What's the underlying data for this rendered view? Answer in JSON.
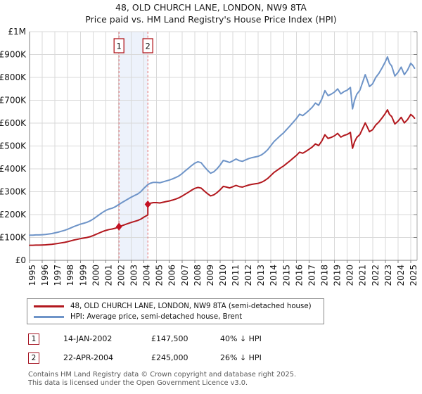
{
  "title": "48, OLD CHURCH LANE, LONDON, NW9 8TA",
  "subtitle": "Price paid vs. HM Land Registry's House Price Index (HPI)",
  "legend": [
    {
      "label": "48, OLD CHURCH LANE, LONDON, NW9 8TA (semi-detached house)",
      "color": "#b2181e"
    },
    {
      "label": "HPI: Average price, semi-detached house, Brent",
      "color": "#6e94c8"
    }
  ],
  "transactions": [
    {
      "num": "1",
      "date": "14-JAN-2002",
      "price": "£147,500",
      "vs_hpi": "40% ↓ HPI",
      "year": 2002.04,
      "value_k": 147.5
    },
    {
      "num": "2",
      "date": "22-APR-2004",
      "price": "£245,000",
      "vs_hpi": "26% ↓ HPI",
      "year": 2004.31,
      "value_k": 245
    }
  ],
  "footer": {
    "line1": "Contains HM Land Registry data © Crown copyright and database right 2025.",
    "line2": "This data is licensed under the Open Government Licence v3.0."
  },
  "chart_data": {
    "type": "line",
    "title": "48, OLD CHURCH LANE, LONDON, NW9 8TA",
    "subtitle": "Price paid vs. HM Land Registry's House Price Index (HPI)",
    "unit": "GBP thousands",
    "grid": true,
    "legend_position": "bottom",
    "x_domain": [
      1995,
      2025.5
    ],
    "y_domain_k": [
      0,
      1000
    ],
    "x_ticks": [
      1995,
      1996,
      1997,
      1998,
      1999,
      2000,
      2001,
      2002,
      2003,
      2004,
      2005,
      2006,
      2007,
      2008,
      2009,
      2010,
      2011,
      2012,
      2013,
      2014,
      2015,
      2016,
      2017,
      2018,
      2019,
      2020,
      2021,
      2022,
      2023,
      2024,
      2025
    ],
    "y_ticks": [
      {
        "v": 1000,
        "label": "£1M"
      },
      {
        "v": 900,
        "label": "£900K"
      },
      {
        "v": 800,
        "label": "£800K"
      },
      {
        "v": 700,
        "label": "£700K"
      },
      {
        "v": 600,
        "label": "£600K"
      },
      {
        "v": 500,
        "label": "£500K"
      },
      {
        "v": 400,
        "label": "£400K"
      },
      {
        "v": 300,
        "label": "£300K"
      },
      {
        "v": 200,
        "label": "£200K"
      },
      {
        "v": 100,
        "label": "£100K"
      },
      {
        "v": 0,
        "label": "£0"
      }
    ],
    "highlight_band": {
      "from_year": 2002.04,
      "to_year": 2004.31,
      "color": "#edf2fb"
    },
    "sale_line_color": "#e56a6a",
    "series": [
      {
        "name": "48, OLD CHURCH LANE, LONDON, NW9 8TA (semi-detached house)",
        "color": "#b2181e",
        "points": [
          [
            1995,
            66
          ],
          [
            1995.25,
            66
          ],
          [
            1995.5,
            66.6
          ],
          [
            1995.75,
            66.6
          ],
          [
            1996,
            67.2
          ],
          [
            1996.25,
            67.8
          ],
          [
            1996.5,
            69
          ],
          [
            1996.75,
            70.2
          ],
          [
            1997,
            72
          ],
          [
            1997.25,
            73.8
          ],
          [
            1997.5,
            76.2
          ],
          [
            1997.75,
            78.6
          ],
          [
            1998,
            81.6
          ],
          [
            1998.25,
            85.2
          ],
          [
            1998.5,
            88.8
          ],
          [
            1998.75,
            91.8
          ],
          [
            1999,
            94.8
          ],
          [
            1999.25,
            97.2
          ],
          [
            1999.5,
            99.6
          ],
          [
            1999.75,
            103.2
          ],
          [
            2000,
            108
          ],
          [
            2000.25,
            114
          ],
          [
            2000.5,
            120
          ],
          [
            2000.75,
            126
          ],
          [
            2001,
            130.8
          ],
          [
            2001.25,
            134.4
          ],
          [
            2001.5,
            136.8
          ],
          [
            2001.75,
            140.4
          ],
          [
            2002,
            145.8
          ],
          [
            2002.08,
            147.6
          ],
          [
            2002.25,
            151.2
          ],
          [
            2002.5,
            156
          ],
          [
            2002.75,
            160.8
          ],
          [
            2003,
            165.6
          ],
          [
            2003.25,
            169.8
          ],
          [
            2003.5,
            174
          ],
          [
            2003.75,
            180
          ],
          [
            2004,
            189
          ],
          [
            2004.31,
            198.6
          ],
          [
            2004.31,
            244.9
          ],
          [
            2004.5,
            249.4
          ],
          [
            2004.75,
            252.3
          ],
          [
            2005,
            252.3
          ],
          [
            2005.25,
            250.9
          ],
          [
            2005.5,
            253.8
          ],
          [
            2005.75,
            256.8
          ],
          [
            2006,
            259.7
          ],
          [
            2006.25,
            263.4
          ],
          [
            2006.5,
            267.9
          ],
          [
            2006.75,
            273.1
          ],
          [
            2007,
            280.5
          ],
          [
            2007.25,
            289.3
          ],
          [
            2007.5,
            297.5
          ],
          [
            2007.75,
            306.4
          ],
          [
            2008,
            314.5
          ],
          [
            2008.25,
            318.9
          ],
          [
            2008.5,
            316
          ],
          [
            2008.75,
            303.4
          ],
          [
            2009,
            291.6
          ],
          [
            2009.25,
            281.9
          ],
          [
            2009.5,
            286.4
          ],
          [
            2009.75,
            296
          ],
          [
            2010,
            308.6
          ],
          [
            2010.25,
            323.4
          ],
          [
            2010.5,
            320.4
          ],
          [
            2010.75,
            316.7
          ],
          [
            2011,
            321.9
          ],
          [
            2011.25,
            327.8
          ],
          [
            2011.5,
            322.6
          ],
          [
            2011.75,
            320.4
          ],
          [
            2012,
            324.9
          ],
          [
            2012.25,
            329.3
          ],
          [
            2012.5,
            332.3
          ],
          [
            2012.75,
            334.5
          ],
          [
            2013,
            336.7
          ],
          [
            2013.25,
            341.1
          ],
          [
            2013.5,
            348.5
          ],
          [
            2013.75,
            358.2
          ],
          [
            2014,
            371.5
          ],
          [
            2014.25,
            384.8
          ],
          [
            2014.5,
            394.4
          ],
          [
            2014.75,
            404
          ],
          [
            2015,
            412.9
          ],
          [
            2015.25,
            424
          ],
          [
            2015.5,
            435.1
          ],
          [
            2015.75,
            447
          ],
          [
            2016,
            458.8
          ],
          [
            2016.25,
            472.9
          ],
          [
            2016.5,
            468.4
          ],
          [
            2016.75,
            476.6
          ],
          [
            2017,
            485.4
          ],
          [
            2017.25,
            495.8
          ],
          [
            2017.5,
            509.1
          ],
          [
            2017.75,
            501.7
          ],
          [
            2018,
            521.7
          ],
          [
            2018.25,
            549.1
          ],
          [
            2018.5,
            532.8
          ],
          [
            2018.75,
            538
          ],
          [
            2019,
            544.6
          ],
          [
            2019.25,
            555
          ],
          [
            2019.5,
            538.7
          ],
          [
            2019.75,
            546.1
          ],
          [
            2020,
            550.6
          ],
          [
            2020.25,
            559.4
          ],
          [
            2020.42,
            489.9
          ],
          [
            2020.58,
            518
          ],
          [
            2020.75,
            537.2
          ],
          [
            2021,
            550.6
          ],
          [
            2021.25,
            580.2
          ],
          [
            2021.42,
            600.9
          ],
          [
            2021.58,
            583.1
          ],
          [
            2021.75,
            562.4
          ],
          [
            2022,
            571.3
          ],
          [
            2022.25,
            592
          ],
          [
            2022.5,
            605.3
          ],
          [
            2022.75,
            623.1
          ],
          [
            2023,
            642.3
          ],
          [
            2023.17,
            658.6
          ],
          [
            2023.33,
            637.9
          ],
          [
            2023.5,
            629
          ],
          [
            2023.75,
            596.4
          ],
          [
            2024,
            608.3
          ],
          [
            2024.25,
            625.3
          ],
          [
            2024.5,
            600.9
          ],
          [
            2024.75,
            615.7
          ],
          [
            2025,
            637.9
          ],
          [
            2025.17,
            630.5
          ],
          [
            2025.3,
            621.6
          ]
        ]
      },
      {
        "name": "HPI: Average price, semi-detached house, Brent",
        "color": "#6e94c8",
        "points": [
          [
            1995,
            110
          ],
          [
            1995.25,
            110
          ],
          [
            1995.5,
            111
          ],
          [
            1995.75,
            111
          ],
          [
            1996,
            112
          ],
          [
            1996.25,
            113
          ],
          [
            1996.5,
            115
          ],
          [
            1996.75,
            117
          ],
          [
            1997,
            120
          ],
          [
            1997.25,
            123
          ],
          [
            1997.5,
            127
          ],
          [
            1997.75,
            131
          ],
          [
            1998,
            136
          ],
          [
            1998.25,
            142
          ],
          [
            1998.5,
            148
          ],
          [
            1998.75,
            153
          ],
          [
            1999,
            158
          ],
          [
            1999.25,
            162
          ],
          [
            1999.5,
            166
          ],
          [
            1999.75,
            172
          ],
          [
            2000,
            180
          ],
          [
            2000.25,
            190
          ],
          [
            2000.5,
            200
          ],
          [
            2000.75,
            210
          ],
          [
            2001,
            218
          ],
          [
            2001.25,
            224
          ],
          [
            2001.5,
            228
          ],
          [
            2001.75,
            234
          ],
          [
            2002,
            243
          ],
          [
            2002.08,
            246
          ],
          [
            2002.25,
            252
          ],
          [
            2002.5,
            260
          ],
          [
            2002.75,
            268
          ],
          [
            2003,
            276
          ],
          [
            2003.25,
            283
          ],
          [
            2003.5,
            290
          ],
          [
            2003.75,
            300
          ],
          [
            2004,
            315
          ],
          [
            2004.31,
            331
          ],
          [
            2004.5,
            337
          ],
          [
            2004.75,
            341
          ],
          [
            2005,
            341
          ],
          [
            2005.25,
            339
          ],
          [
            2005.5,
            343
          ],
          [
            2005.75,
            347
          ],
          [
            2006,
            351
          ],
          [
            2006.25,
            356
          ],
          [
            2006.5,
            362
          ],
          [
            2006.75,
            369
          ],
          [
            2007,
            379
          ],
          [
            2007.25,
            391
          ],
          [
            2007.5,
            402
          ],
          [
            2007.75,
            414
          ],
          [
            2008,
            425
          ],
          [
            2008.25,
            431
          ],
          [
            2008.5,
            427
          ],
          [
            2008.75,
            410
          ],
          [
            2009,
            394
          ],
          [
            2009.25,
            381
          ],
          [
            2009.5,
            387
          ],
          [
            2009.75,
            400
          ],
          [
            2010,
            417
          ],
          [
            2010.25,
            437
          ],
          [
            2010.5,
            433
          ],
          [
            2010.75,
            428
          ],
          [
            2011,
            435
          ],
          [
            2011.25,
            443
          ],
          [
            2011.5,
            436
          ],
          [
            2011.75,
            433
          ],
          [
            2012,
            439
          ],
          [
            2012.25,
            445
          ],
          [
            2012.5,
            449
          ],
          [
            2012.75,
            452
          ],
          [
            2013,
            455
          ],
          [
            2013.25,
            461
          ],
          [
            2013.5,
            471
          ],
          [
            2013.75,
            484
          ],
          [
            2014,
            502
          ],
          [
            2014.25,
            520
          ],
          [
            2014.5,
            533
          ],
          [
            2014.75,
            546
          ],
          [
            2015,
            558
          ],
          [
            2015.25,
            573
          ],
          [
            2015.5,
            588
          ],
          [
            2015.75,
            604
          ],
          [
            2016,
            620
          ],
          [
            2016.25,
            639
          ],
          [
            2016.5,
            633
          ],
          [
            2016.75,
            644
          ],
          [
            2017,
            656
          ],
          [
            2017.25,
            670
          ],
          [
            2017.5,
            688
          ],
          [
            2017.75,
            678
          ],
          [
            2018,
            705
          ],
          [
            2018.25,
            742
          ],
          [
            2018.5,
            720
          ],
          [
            2018.75,
            727
          ],
          [
            2019,
            736
          ],
          [
            2019.25,
            750
          ],
          [
            2019.5,
            728
          ],
          [
            2019.75,
            738
          ],
          [
            2020,
            744
          ],
          [
            2020.25,
            756
          ],
          [
            2020.42,
            662
          ],
          [
            2020.58,
            700
          ],
          [
            2020.75,
            726
          ],
          [
            2021,
            744
          ],
          [
            2021.25,
            784
          ],
          [
            2021.42,
            812
          ],
          [
            2021.58,
            788
          ],
          [
            2021.75,
            760
          ],
          [
            2022,
            772
          ],
          [
            2022.25,
            800
          ],
          [
            2022.5,
            818
          ],
          [
            2022.75,
            842
          ],
          [
            2023,
            868
          ],
          [
            2023.17,
            890
          ],
          [
            2023.33,
            862
          ],
          [
            2023.5,
            850
          ],
          [
            2023.75,
            806
          ],
          [
            2024,
            822
          ],
          [
            2024.25,
            845
          ],
          [
            2024.5,
            812
          ],
          [
            2024.75,
            832
          ],
          [
            2025,
            862
          ],
          [
            2025.17,
            852
          ],
          [
            2025.3,
            840
          ]
        ]
      }
    ]
  }
}
